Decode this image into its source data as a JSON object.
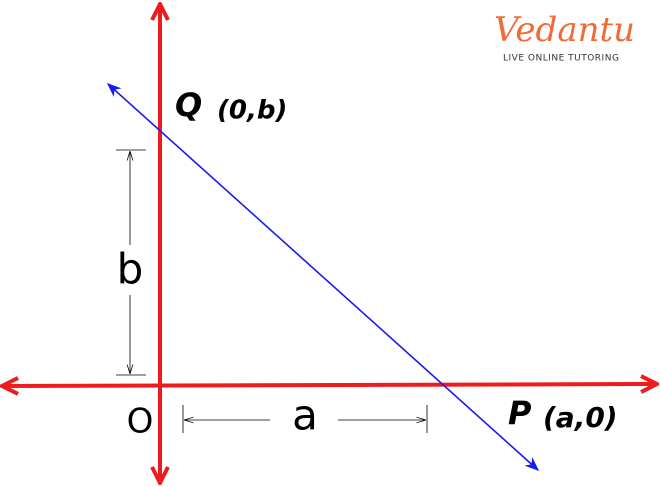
{
  "logo": {
    "brand": "Vedantu",
    "tagline": "LIVE ONLINE TUTORING"
  },
  "points": {
    "q": {
      "name": "Q",
      "coords": "(0,b)"
    },
    "p": {
      "name": "P",
      "coords": "(a,0)"
    },
    "origin": "O"
  },
  "dimensions": {
    "vertical": "b",
    "horizontal": "a"
  }
}
